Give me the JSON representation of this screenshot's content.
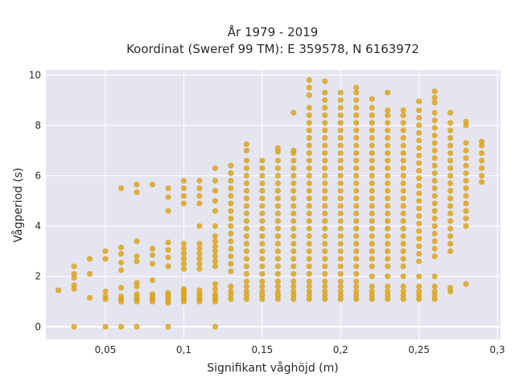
{
  "chart_data": {
    "type": "scatter",
    "title_lines": [
      "År 1979 - 2019",
      "Koordinat (Sweref 99 TM): E 359578, N 6163972"
    ],
    "xlabel": "Signifikant våghöjd (m)",
    "ylabel": "Vågperiod (s)",
    "xlim": [
      0.012,
      0.302
    ],
    "ylim": [
      -0.5,
      10.2
    ],
    "x_ticks": [
      0.05,
      0.1,
      0.15,
      0.2,
      0.25,
      0.3
    ],
    "x_tick_labels": [
      "0,05",
      "0,1",
      "0,15",
      "0,2",
      "0,25",
      "0,3"
    ],
    "y_ticks": [
      0,
      2,
      4,
      6,
      8,
      10
    ],
    "y_tick_labels": [
      "0",
      "2",
      "4",
      "6",
      "8",
      "10"
    ],
    "grid": true,
    "marker_color": "#DAA520",
    "plot_background": "#E5E5EF",
    "columns": [
      {
        "x": 0.02,
        "y": [
          1.45
        ]
      },
      {
        "x": 0.03,
        "y": [
          0,
          1.5,
          1.65,
          1.95,
          2.1,
          2.4
        ]
      },
      {
        "x": 0.04,
        "y": [
          1.15,
          2.1,
          2.7
        ]
      },
      {
        "x": 0.05,
        "y": [
          0,
          1.1,
          1.2,
          1.4,
          2.7,
          3.0
        ]
      },
      {
        "x": 0.06,
        "y": [
          0,
          1.0,
          1.1,
          1.2,
          1.55,
          2.25,
          2.55,
          2.9,
          3.15,
          5.5
        ]
      },
      {
        "x": 0.07,
        "y": [
          0,
          1.0,
          1.1,
          1.2,
          1.3,
          1.6,
          1.75,
          2.6,
          2.8,
          3.4,
          5.35,
          5.65
        ]
      },
      {
        "x": 0.08,
        "y": [
          1.0,
          1.1,
          1.2,
          1.3,
          1.85,
          2.5,
          2.85,
          3.1,
          5.65
        ]
      },
      {
        "x": 0.09,
        "y": [
          0,
          0.95,
          1.05,
          1.15,
          1.25,
          1.35,
          2.4,
          2.75,
          3.05,
          3.35,
          4.6,
          5.15,
          5.5
        ]
      },
      {
        "x": 0.1,
        "y": [
          1.0,
          1.1,
          1.2,
          1.3,
          1.4,
          1.5,
          2.3,
          2.5,
          2.7,
          2.9,
          3.1,
          3.3,
          4.9,
          5.2,
          5.5,
          5.8
        ]
      },
      {
        "x": 0.11,
        "y": [
          1.0,
          1.1,
          1.2,
          1.3,
          1.45,
          2.3,
          2.5,
          2.7,
          2.9,
          3.1,
          3.3,
          4.0,
          4.9,
          5.2,
          5.5,
          5.8
        ]
      },
      {
        "x": 0.12,
        "y": [
          0,
          1.0,
          1.1,
          1.2,
          1.3,
          1.5,
          1.7,
          2.4,
          2.6,
          2.8,
          3.0,
          3.2,
          3.4,
          3.6,
          4.0,
          4.6,
          5.0,
          5.4,
          5.8,
          6.3
        ]
      },
      {
        "x": 0.13,
        "y": [
          1.1,
          1.25,
          1.4,
          1.6,
          2.2,
          2.5,
          2.8,
          3.1,
          3.4,
          3.7,
          4.0,
          4.3,
          4.6,
          4.9,
          5.2,
          5.5,
          5.8,
          6.1,
          6.4
        ]
      },
      {
        "x": 0.14,
        "y": [
          1.1,
          1.25,
          1.4,
          1.6,
          1.8,
          2.1,
          2.4,
          2.7,
          3.0,
          3.3,
          3.6,
          3.9,
          4.2,
          4.5,
          4.8,
          5.1,
          5.4,
          5.7,
          6.0,
          6.3,
          6.6,
          7.0,
          7.25
        ]
      },
      {
        "x": 0.15,
        "y": [
          1.1,
          1.25,
          1.4,
          1.6,
          1.8,
          2.1,
          2.4,
          2.7,
          3.0,
          3.3,
          3.6,
          3.9,
          4.2,
          4.5,
          4.8,
          5.1,
          5.4,
          5.7,
          6.0,
          6.3,
          6.6
        ]
      },
      {
        "x": 0.16,
        "y": [
          1.1,
          1.25,
          1.4,
          1.6,
          1.8,
          2.1,
          2.4,
          2.7,
          3.0,
          3.3,
          3.6,
          3.9,
          4.2,
          4.5,
          4.8,
          5.1,
          5.4,
          5.7,
          6.0,
          6.3,
          6.6,
          6.95,
          7.1
        ]
      },
      {
        "x": 0.17,
        "y": [
          1.1,
          1.25,
          1.4,
          1.6,
          1.8,
          2.1,
          2.4,
          2.7,
          3.0,
          3.3,
          3.6,
          3.9,
          4.2,
          4.5,
          4.8,
          5.1,
          5.4,
          5.7,
          6.0,
          6.3,
          6.6,
          6.9,
          7.0,
          8.5
        ]
      },
      {
        "x": 0.18,
        "y": [
          1.1,
          1.25,
          1.4,
          1.6,
          1.8,
          2.1,
          2.4,
          2.7,
          3.0,
          3.3,
          3.6,
          3.9,
          4.2,
          4.5,
          4.8,
          5.1,
          5.4,
          5.7,
          6.0,
          6.3,
          6.6,
          6.9,
          7.2,
          7.5,
          7.8,
          8.1,
          8.4,
          8.7,
          9.2,
          9.5,
          9.8
        ]
      },
      {
        "x": 0.19,
        "y": [
          1.1,
          1.25,
          1.4,
          1.6,
          1.8,
          2.1,
          2.4,
          2.7,
          3.0,
          3.3,
          3.6,
          3.9,
          4.2,
          4.5,
          4.8,
          5.1,
          5.4,
          5.7,
          6.0,
          6.3,
          6.6,
          6.9,
          7.2,
          7.5,
          7.8,
          8.1,
          8.4,
          8.7,
          9.0,
          9.3,
          9.75
        ]
      },
      {
        "x": 0.2,
        "y": [
          1.1,
          1.25,
          1.4,
          1.6,
          1.8,
          2.1,
          2.4,
          2.7,
          3.0,
          3.3,
          3.6,
          3.9,
          4.2,
          4.5,
          4.8,
          5.1,
          5.4,
          5.7,
          6.0,
          6.3,
          6.6,
          6.9,
          7.2,
          7.5,
          7.8,
          8.1,
          8.4,
          8.7,
          9.0,
          9.3
        ]
      },
      {
        "x": 0.21,
        "y": [
          1.1,
          1.25,
          1.4,
          1.6,
          1.8,
          2.1,
          2.4,
          2.7,
          3.0,
          3.3,
          3.6,
          3.9,
          4.2,
          4.5,
          4.8,
          5.1,
          5.4,
          5.7,
          6.0,
          6.3,
          6.6,
          6.9,
          7.2,
          7.5,
          7.8,
          8.1,
          8.4,
          8.7,
          9.0,
          9.3,
          9.5
        ]
      },
      {
        "x": 0.22,
        "y": [
          1.1,
          1.25,
          1.4,
          1.6,
          2.0,
          2.4,
          2.7,
          3.0,
          3.3,
          3.6,
          3.9,
          4.2,
          4.5,
          4.8,
          5.1,
          5.4,
          5.7,
          6.0,
          6.3,
          6.6,
          6.9,
          7.2,
          7.5,
          7.8,
          8.1,
          8.4,
          8.7,
          9.05
        ]
      },
      {
        "x": 0.23,
        "y": [
          1.1,
          1.25,
          1.4,
          1.6,
          2.0,
          2.4,
          2.7,
          3.0,
          3.3,
          3.6,
          3.9,
          4.2,
          4.5,
          4.8,
          5.1,
          5.4,
          5.7,
          6.0,
          6.3,
          6.6,
          6.9,
          7.2,
          7.5,
          7.8,
          8.1,
          8.4,
          8.6,
          9.3
        ]
      },
      {
        "x": 0.24,
        "y": [
          1.1,
          1.25,
          1.4,
          1.6,
          2.0,
          2.4,
          2.7,
          3.0,
          3.3,
          3.6,
          3.9,
          4.2,
          4.5,
          4.8,
          5.1,
          5.4,
          5.7,
          6.0,
          6.3,
          6.6,
          6.9,
          7.2,
          7.5,
          7.8,
          8.1,
          8.4,
          8.6
        ]
      },
      {
        "x": 0.25,
        "y": [
          1.1,
          1.25,
          1.4,
          1.6,
          2.0,
          2.6,
          2.9,
          3.2,
          3.5,
          3.8,
          4.1,
          4.4,
          4.7,
          5.0,
          5.3,
          5.6,
          5.9,
          6.2,
          6.5,
          6.8,
          7.1,
          7.4,
          7.7,
          8.0,
          8.3,
          8.6,
          8.95
        ]
      },
      {
        "x": 0.26,
        "y": [
          1.1,
          1.25,
          1.4,
          1.6,
          2.0,
          2.8,
          3.1,
          3.4,
          3.7,
          4.0,
          4.3,
          4.6,
          4.9,
          5.2,
          5.5,
          5.8,
          6.1,
          6.4,
          6.7,
          7.0,
          7.3,
          7.6,
          7.9,
          8.2,
          8.5,
          8.9,
          9.1,
          9.35
        ]
      },
      {
        "x": 0.27,
        "y": [
          1.4,
          1.55,
          3.0,
          3.3,
          3.6,
          3.9,
          4.2,
          4.5,
          4.8,
          5.1,
          5.4,
          5.7,
          6.0,
          6.3,
          6.6,
          6.9,
          7.2,
          7.5,
          7.8,
          8.1,
          8.5
        ]
      },
      {
        "x": 0.28,
        "y": [
          1.7,
          4.0,
          4.3,
          4.6,
          4.9,
          5.2,
          5.5,
          5.8,
          6.1,
          6.4,
          6.7,
          7.0,
          7.3,
          8.0,
          8.15
        ]
      },
      {
        "x": 0.29,
        "y": [
          5.75,
          6.0,
          6.3,
          6.6,
          6.9,
          7.2,
          7.35
        ]
      }
    ]
  }
}
